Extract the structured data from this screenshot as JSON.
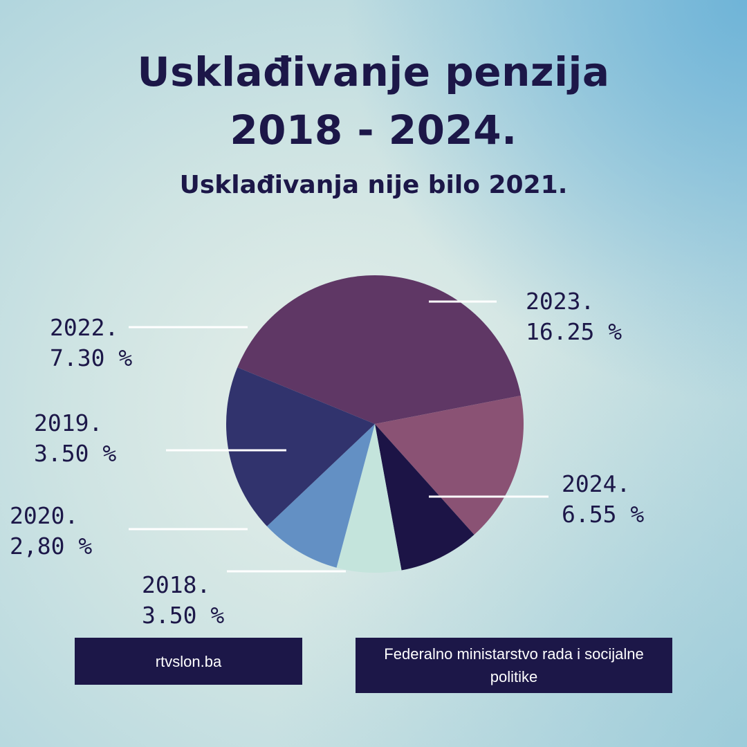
{
  "title_line1": "Usklađivanje penzija",
  "title_line2": "2018 - 2024.",
  "subtitle": "Usklađivanja nije bilo 2021.",
  "chart_data": {
    "type": "pie",
    "title": "Usklađivanje penzija 2018 - 2024.",
    "subtitle": "Usklađivanja nije bilo 2021.",
    "slices": [
      {
        "year": "2023.",
        "value_text": "16.25 %",
        "value": 16.25,
        "color": "#5f3765"
      },
      {
        "year": "2024.",
        "value_text": "6.55 %",
        "value": 6.55,
        "color": "#8a5274"
      },
      {
        "year": "2018.",
        "value_text": "3.50 %",
        "value": 3.5,
        "color": "#1c1446"
      },
      {
        "year": "2020.",
        "value_text": "2,80 %",
        "value": 2.8,
        "color": "#c4e4dc"
      },
      {
        "year": "2019.",
        "value_text": "3.50 %",
        "value": 3.5,
        "color": "#6390c4"
      },
      {
        "year": "2022.",
        "value_text": "7.30 %",
        "value": 7.3,
        "color": "#31336d"
      }
    ]
  },
  "source_left": "rtvslon.ba",
  "source_right": "Federalno ministarstvo rada i socijalne politike",
  "colors": {
    "text": "#1c1748",
    "box": "#1c1748",
    "leader_line": "#ffffff"
  }
}
